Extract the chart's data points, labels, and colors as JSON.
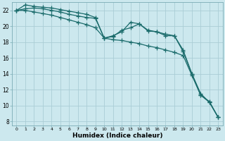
{
  "xlabel": "Humidex (Indice chaleur)",
  "ylabel": "",
  "background_color": "#cce8ee",
  "grid_color": "#aacdd5",
  "line_color": "#1a6b6b",
  "xlim": [
    -0.5,
    23.5
  ],
  "ylim": [
    7.5,
    23.0
  ],
  "xticks": [
    0,
    1,
    2,
    3,
    4,
    5,
    6,
    7,
    8,
    9,
    10,
    11,
    12,
    13,
    14,
    15,
    16,
    17,
    18,
    19,
    20,
    21,
    22,
    23
  ],
  "yticks": [
    8,
    10,
    12,
    14,
    16,
    18,
    20,
    22
  ],
  "series": [
    {
      "x": [
        0,
        1,
        2,
        3,
        4,
        5,
        6,
        7,
        8,
        9,
        10,
        11,
        12,
        13,
        14,
        15,
        16,
        17,
        18,
        19,
        20,
        21,
        22,
        23
      ],
      "y": [
        22,
        22.7,
        22.5,
        22.4,
        22.3,
        22.1,
        21.9,
        21.7,
        21.5,
        21.1,
        18.5,
        18.8,
        19.3,
        20.5,
        20.3,
        19.4,
        19.3,
        18.8,
        18.8,
        17.0,
        14.0,
        11.3,
        10.5,
        8.5
      ]
    },
    {
      "x": [
        0,
        1,
        2,
        3,
        4,
        5,
        6,
        7,
        8,
        9,
        10,
        11,
        12,
        13,
        14,
        15,
        16,
        17,
        18,
        19,
        20,
        21,
        22,
        23
      ],
      "y": [
        22,
        22.2,
        22.3,
        22.2,
        22.0,
        21.8,
        21.5,
        21.3,
        21.1,
        21.0,
        18.5,
        18.7,
        19.5,
        19.8,
        20.3,
        19.5,
        19.3,
        19.0,
        18.8,
        16.8,
        14.0,
        11.5,
        10.4,
        8.5
      ]
    },
    {
      "x": [
        0,
        1,
        2,
        3,
        4,
        5,
        6,
        7,
        8,
        9,
        10,
        11,
        12,
        13,
        14,
        15,
        16,
        17,
        18,
        19,
        20,
        21,
        22,
        23
      ],
      "y": [
        22,
        22.0,
        21.8,
        21.6,
        21.4,
        21.1,
        20.8,
        20.5,
        20.2,
        19.8,
        18.5,
        18.3,
        18.2,
        18.0,
        17.8,
        17.5,
        17.3,
        17.0,
        16.7,
        16.3,
        13.8,
        11.3,
        10.4,
        8.5
      ]
    }
  ],
  "marker": "+",
  "markersize": 4,
  "linewidth": 0.9
}
